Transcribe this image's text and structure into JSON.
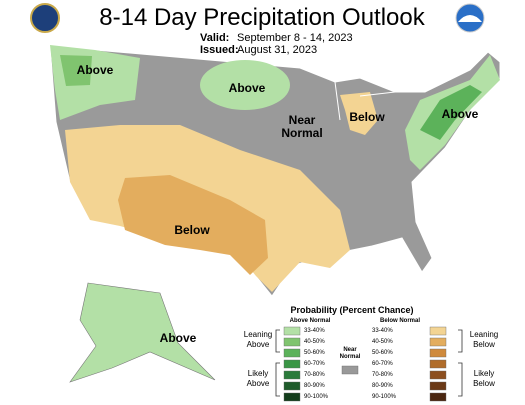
{
  "header": {
    "title": "8-14 Day Precipitation Outlook",
    "valid_label": "Valid:",
    "valid": "September 8 - 14, 2023",
    "issued_label": "Issued:",
    "issued": "August 31, 2023"
  },
  "map_labels": [
    "Above",
    "Above",
    "Near Normal",
    "Below",
    "Above",
    "Below",
    "Above"
  ],
  "legend": {
    "title": "Probability (Percent Chance)",
    "above": {
      "heading": "Above Normal",
      "groups": [
        "Leaning Above",
        "Likely Above"
      ],
      "bins": [
        {
          "label": "33-40%",
          "color": "#b3e0a6"
        },
        {
          "label": "40-50%",
          "color": "#80c46f"
        },
        {
          "label": "50-60%",
          "color": "#5cb25a"
        },
        {
          "label": "60-70%",
          "color": "#3a9645"
        },
        {
          "label": "70-80%",
          "color": "#2a7a3a"
        },
        {
          "label": "80-90%",
          "color": "#1f5c2b"
        },
        {
          "label": "90-100%",
          "color": "#133d1b"
        }
      ]
    },
    "below": {
      "heading": "Below Normal",
      "groups": [
        "Leaning Below",
        "Likely Below"
      ],
      "bins": [
        {
          "label": "33-40%",
          "color": "#f3d493"
        },
        {
          "label": "40-50%",
          "color": "#e3ad5e"
        },
        {
          "label": "50-60%",
          "color": "#cf8a3c"
        },
        {
          "label": "60-70%",
          "color": "#b06c2a"
        },
        {
          "label": "70-80%",
          "color": "#8c4f1f"
        },
        {
          "label": "80-90%",
          "color": "#6b3a17"
        },
        {
          "label": "90-100%",
          "color": "#4a2610"
        }
      ]
    },
    "near": {
      "heading": "Near Normal",
      "color": "#999999"
    }
  }
}
